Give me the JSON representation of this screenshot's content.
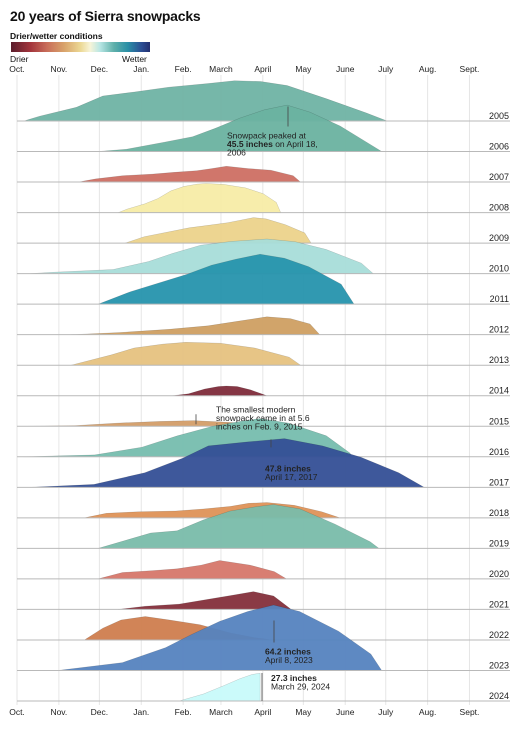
{
  "title": "20 years of Sierra snowpacks",
  "legend": {
    "title": "Drier/wetter conditions",
    "low_label": "Drier",
    "high_label": "Wetter",
    "colors": [
      "#5b1d2c",
      "#a3353c",
      "#c96e5a",
      "#d8a26a",
      "#ecd894",
      "#f7f4d8",
      "#b8e6e4",
      "#5fb0aa",
      "#2a8fa6",
      "#2b4d93",
      "#232f6f"
    ]
  },
  "chart_data": {
    "type": "area",
    "subtype": "ridgeline",
    "x_axis": {
      "ticks": [
        "Oct.",
        "Nov.",
        "Dec.",
        "Jan.",
        "Feb.",
        "March",
        "April",
        "May",
        "June",
        "July",
        "Aug.",
        "Sept."
      ],
      "range": [
        "Oct. 1",
        "Sept. 30"
      ],
      "grid": true
    },
    "y_unit": "inches",
    "ylim": [
      0,
      64.2
    ],
    "series": [
      {
        "name": "2005",
        "color": "#6fb3a4",
        "start_day": 5,
        "peak_day": 200,
        "peak": 39.5,
        "end_day": 265,
        "profile": [
          [
            0,
            0
          ],
          [
            0.06,
            0.12
          ],
          [
            0.2,
            0.34
          ],
          [
            0.3,
            0.62
          ],
          [
            0.42,
            0.72
          ],
          [
            0.55,
            0.84
          ],
          [
            0.7,
            0.93
          ],
          [
            0.8,
            1
          ],
          [
            0.9,
            0.98
          ],
          [
            1,
            0.88
          ],
          [
            1.15,
            0.55
          ],
          [
            1.3,
            0.2
          ],
          [
            1.38,
            0
          ]
        ]
      },
      {
        "name": "2006",
        "color": "#6ab2a0",
        "start_day": 60,
        "peak_day": 200,
        "peak": 45.5,
        "end_day": 270,
        "profile": [
          [
            0,
            0
          ],
          [
            0.15,
            0.05
          ],
          [
            0.35,
            0.2
          ],
          [
            0.5,
            0.32
          ],
          [
            0.62,
            0.5
          ],
          [
            0.75,
            0.72
          ],
          [
            0.88,
            0.9
          ],
          [
            1,
            1
          ],
          [
            1.12,
            0.85
          ],
          [
            1.28,
            0.55
          ],
          [
            1.42,
            0.2
          ],
          [
            1.5,
            0
          ]
        ]
      },
      {
        "name": "2007",
        "color": "#cd6f63",
        "start_day": 45,
        "peak_day": 155,
        "peak": 15.5,
        "end_day": 230,
        "profile": [
          [
            0,
            0
          ],
          [
            0.12,
            0.2
          ],
          [
            0.3,
            0.4
          ],
          [
            0.5,
            0.5
          ],
          [
            0.65,
            0.62
          ],
          [
            0.8,
            0.72
          ],
          [
            0.9,
            0.85
          ],
          [
            1,
            1
          ],
          [
            1.15,
            0.85
          ],
          [
            1.3,
            0.75
          ],
          [
            1.45,
            0.4
          ],
          [
            1.5,
            0
          ]
        ]
      },
      {
        "name": "2008",
        "color": "#f7eca7",
        "start_day": 75,
        "peak_day": 140,
        "peak": 28.5,
        "end_day": 250,
        "profile": [
          [
            0,
            0
          ],
          [
            0.1,
            0.12
          ],
          [
            0.3,
            0.3
          ],
          [
            0.45,
            0.48
          ],
          [
            0.6,
            0.75
          ],
          [
            0.75,
            0.9
          ],
          [
            0.9,
            0.98
          ],
          [
            1,
            1
          ],
          [
            1.2,
            0.97
          ],
          [
            1.45,
            0.85
          ],
          [
            1.65,
            0.65
          ],
          [
            1.8,
            0.35
          ],
          [
            1.85,
            0
          ]
        ]
      },
      {
        "name": "2009",
        "color": "#ecd38b",
        "start_day": 80,
        "peak_day": 175,
        "peak": 25.0,
        "end_day": 255,
        "profile": [
          [
            0,
            0
          ],
          [
            0.15,
            0.25
          ],
          [
            0.35,
            0.45
          ],
          [
            0.5,
            0.6
          ],
          [
            0.65,
            0.7
          ],
          [
            0.8,
            0.8
          ],
          [
            0.9,
            0.9
          ],
          [
            1,
            1
          ],
          [
            1.1,
            0.95
          ],
          [
            1.25,
            0.72
          ],
          [
            1.4,
            0.4
          ],
          [
            1.45,
            0
          ]
        ]
      },
      {
        "name": "2010",
        "color": "#a8ddd9",
        "start_day": 10,
        "peak_day": 185,
        "peak": 34.0,
        "end_day": 270,
        "profile": [
          [
            0,
            0
          ],
          [
            0.1,
            0.04
          ],
          [
            0.35,
            0.12
          ],
          [
            0.5,
            0.35
          ],
          [
            0.6,
            0.58
          ],
          [
            0.72,
            0.82
          ],
          [
            0.85,
            0.93
          ],
          [
            1,
            1
          ],
          [
            1.12,
            0.92
          ],
          [
            1.25,
            0.7
          ],
          [
            1.4,
            0.3
          ],
          [
            1.45,
            0
          ]
        ]
      },
      {
        "name": "2011",
        "color": "#2694ad",
        "start_day": 60,
        "peak_day": 180,
        "peak": 49.0,
        "end_day": 285,
        "profile": [
          [
            0,
            0
          ],
          [
            0.2,
            0.25
          ],
          [
            0.4,
            0.45
          ],
          [
            0.55,
            0.6
          ],
          [
            0.7,
            0.78
          ],
          [
            0.85,
            0.9
          ],
          [
            1,
            1
          ],
          [
            1.15,
            0.92
          ],
          [
            1.3,
            0.75
          ],
          [
            1.5,
            0.4
          ],
          [
            1.58,
            0
          ]
        ]
      },
      {
        "name": "2012",
        "color": "#cf9f62",
        "start_day": 40,
        "peak_day": 185,
        "peak": 17.5,
        "end_day": 235,
        "profile": [
          [
            0,
            0
          ],
          [
            0.25,
            0.12
          ],
          [
            0.5,
            0.3
          ],
          [
            0.7,
            0.5
          ],
          [
            0.85,
            0.75
          ],
          [
            1,
            1
          ],
          [
            1.12,
            0.9
          ],
          [
            1.22,
            0.6
          ],
          [
            1.27,
            0
          ]
        ]
      },
      {
        "name": "2013",
        "color": "#e6c27f",
        "start_day": 40,
        "peak_day": 125,
        "peak": 22.5,
        "end_day": 250,
        "profile": [
          [
            0,
            0
          ],
          [
            0.35,
            0.45
          ],
          [
            0.55,
            0.75
          ],
          [
            0.8,
            0.92
          ],
          [
            1,
            1
          ],
          [
            1.3,
            0.96
          ],
          [
            1.6,
            0.75
          ],
          [
            1.9,
            0.35
          ],
          [
            2,
            0
          ]
        ]
      },
      {
        "name": "2014",
        "color": "#7e2b3a",
        "start_day": 115,
        "peak_day": 155,
        "peak": 9.5,
        "end_day": 215,
        "profile": [
          [
            0,
            0
          ],
          [
            0.3,
            0.2
          ],
          [
            0.6,
            0.7
          ],
          [
            0.85,
            0.95
          ],
          [
            1,
            1
          ],
          [
            1.2,
            0.95
          ],
          [
            1.45,
            0.6
          ],
          [
            1.65,
            0.2
          ],
          [
            1.75,
            0
          ]
        ]
      },
      {
        "name": "2015",
        "color": "#d39d68",
        "start_day": 5,
        "peak_day": 131,
        "peak": 5.6,
        "end_day": 190,
        "profile": [
          [
            0,
            0
          ],
          [
            0.3,
            0.12
          ],
          [
            0.55,
            0.55
          ],
          [
            0.8,
            0.85
          ],
          [
            1,
            1
          ],
          [
            1.2,
            0.7
          ],
          [
            1.4,
            0.2
          ],
          [
            1.45,
            0
          ]
        ]
      },
      {
        "name": "2016",
        "color": "#76bdae",
        "start_day": 5,
        "peak_day": 180,
        "peak": 37.5,
        "end_day": 250,
        "profile": [
          [
            0,
            0
          ],
          [
            0.3,
            0.05
          ],
          [
            0.5,
            0.25
          ],
          [
            0.65,
            0.55
          ],
          [
            0.8,
            0.8
          ],
          [
            0.92,
            0.93
          ],
          [
            1,
            1
          ],
          [
            1.12,
            0.88
          ],
          [
            1.28,
            0.55
          ],
          [
            1.38,
            0.1
          ],
          [
            1.39,
            0
          ]
        ]
      },
      {
        "name": "2017",
        "color": "#344f96",
        "start_day": 10,
        "peak_day": 198,
        "peak": 47.8,
        "end_day": 305,
        "profile": [
          [
            0,
            0
          ],
          [
            0.25,
            0.06
          ],
          [
            0.45,
            0.3
          ],
          [
            0.6,
            0.6
          ],
          [
            0.7,
            0.85
          ],
          [
            0.85,
            0.93
          ],
          [
            1,
            1
          ],
          [
            1.15,
            0.85
          ],
          [
            1.3,
            0.62
          ],
          [
            1.45,
            0.3
          ],
          [
            1.55,
            0
          ]
        ]
      },
      {
        "name": "2018",
        "color": "#de9257",
        "start_day": 50,
        "peak_day": 185,
        "peak": 15.0,
        "end_day": 255,
        "profile": [
          [
            0,
            0
          ],
          [
            0.12,
            0.3
          ],
          [
            0.3,
            0.4
          ],
          [
            0.5,
            0.45
          ],
          [
            0.65,
            0.58
          ],
          [
            0.8,
            0.75
          ],
          [
            0.9,
            0.95
          ],
          [
            1,
            1
          ],
          [
            1.15,
            0.82
          ],
          [
            1.3,
            0.4
          ],
          [
            1.4,
            0
          ]
        ]
      },
      {
        "name": "2019",
        "color": "#79bcaa",
        "start_day": 60,
        "peak_day": 190,
        "peak": 43.0,
        "end_day": 300,
        "profile": [
          [
            0,
            0
          ],
          [
            0.3,
            0.35
          ],
          [
            0.45,
            0.4
          ],
          [
            0.6,
            0.65
          ],
          [
            0.75,
            0.85
          ],
          [
            0.9,
            0.95
          ],
          [
            1,
            1
          ],
          [
            1.15,
            0.9
          ],
          [
            1.35,
            0.55
          ],
          [
            1.55,
            0.15
          ],
          [
            1.6,
            0
          ]
        ]
      },
      {
        "name": "2020",
        "color": "#d6776a",
        "start_day": 60,
        "peak_day": 150,
        "peak": 18.0,
        "end_day": 230,
        "profile": [
          [
            0,
            0
          ],
          [
            0.2,
            0.35
          ],
          [
            0.45,
            0.45
          ],
          [
            0.65,
            0.55
          ],
          [
            0.85,
            0.75
          ],
          [
            1,
            1
          ],
          [
            1.25,
            0.75
          ],
          [
            1.45,
            0.4
          ],
          [
            1.55,
            0
          ]
        ]
      },
      {
        "name": "2021",
        "color": "#842f3b",
        "start_day": 75,
        "peak_day": 175,
        "peak": 17.5,
        "end_day": 225,
        "profile": [
          [
            0,
            0
          ],
          [
            0.2,
            0.18
          ],
          [
            0.45,
            0.3
          ],
          [
            0.65,
            0.55
          ],
          [
            0.85,
            0.8
          ],
          [
            1,
            1
          ],
          [
            1.15,
            0.75
          ],
          [
            1.28,
            0
          ]
        ]
      },
      {
        "name": "2022",
        "color": "#cf7d4e",
        "start_day": 50,
        "peak_day": 95,
        "peak": 23.0,
        "end_day": 245,
        "profile": [
          [
            0,
            0
          ],
          [
            0.3,
            0.5
          ],
          [
            0.6,
            0.85
          ],
          [
            1,
            1
          ],
          [
            1.4,
            0.85
          ],
          [
            1.9,
            0.65
          ],
          [
            2.4,
            0.3
          ],
          [
            2.8,
            0.1
          ],
          [
            3.1,
            0
          ]
        ]
      },
      {
        "name": "2023",
        "color": "#5583bf",
        "start_day": 30,
        "peak_day": 190,
        "peak": 64.2,
        "end_day": 290,
        "profile": [
          [
            0,
            0
          ],
          [
            0.3,
            0.12
          ],
          [
            0.5,
            0.35
          ],
          [
            0.62,
            0.55
          ],
          [
            0.75,
            0.75
          ],
          [
            0.88,
            0.9
          ],
          [
            1,
            1
          ],
          [
            1.12,
            0.9
          ],
          [
            1.3,
            0.6
          ],
          [
            1.45,
            0.25
          ],
          [
            1.5,
            0
          ]
        ]
      },
      {
        "name": "2024",
        "color": "#c8fafa",
        "start_day": 120,
        "peak_day": 180,
        "peak": 27.3,
        "end_day": 180,
        "profile": [
          [
            0,
            0
          ],
          [
            0.3,
            0.25
          ],
          [
            0.55,
            0.55
          ],
          [
            0.75,
            0.8
          ],
          [
            0.9,
            0.95
          ],
          [
            1,
            1
          ],
          [
            1,
            0
          ]
        ]
      }
    ],
    "annotations": [
      {
        "year": "2006",
        "lines": [
          "Snowpack peaked at",
          "45.5 inches on April 18,",
          "2006"
        ],
        "bold": "45.5 inches"
      },
      {
        "year": "2015",
        "lines": [
          "The smallest modern",
          "snowpack came in at 5.6",
          "inches on Feb. 9, 2015"
        ],
        "bold": "5.6 inches"
      },
      {
        "year": "2017",
        "lines": [
          "47.8 inches",
          "April 17, 2017"
        ],
        "bold": "47.8 inches"
      },
      {
        "year": "2023",
        "lines": [
          "64.2 inches",
          "April 8, 2023"
        ],
        "bold": "64.2 inches"
      },
      {
        "year": "2024",
        "lines": [
          "27.3 inches",
          "March 29, 2024"
        ],
        "bold": "27.3 inches"
      }
    ]
  }
}
